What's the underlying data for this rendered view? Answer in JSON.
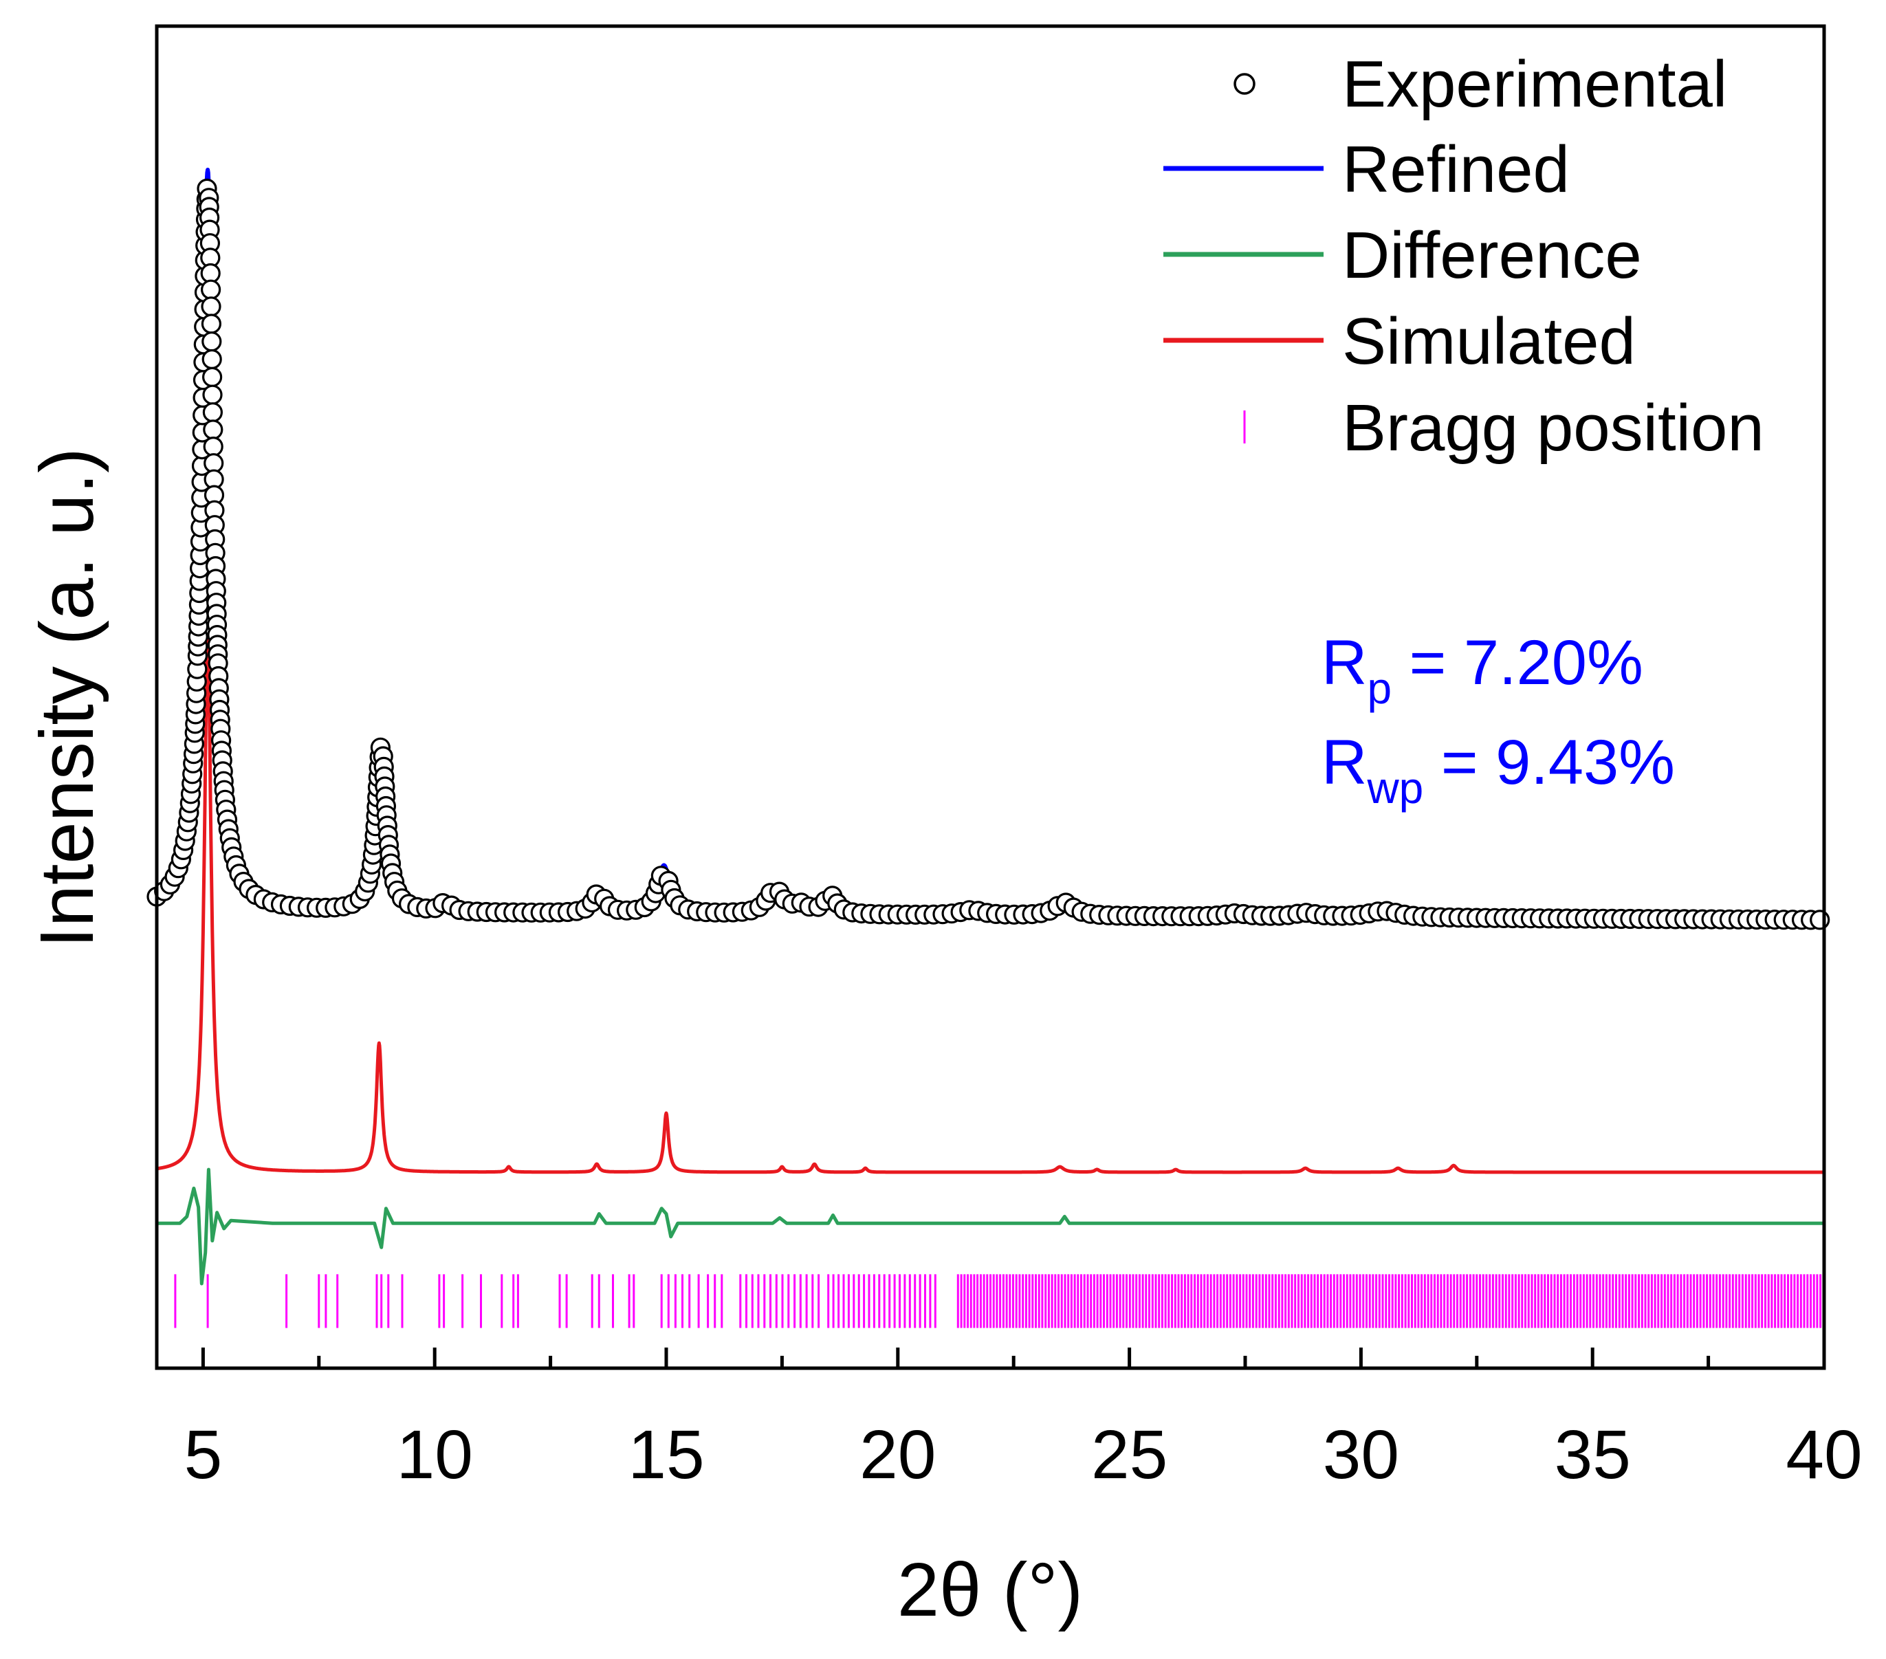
{
  "chart_data": {
    "type": "line",
    "title": "",
    "xlabel": "2θ (°)",
    "ylabel": "Intensity (a. u.)",
    "xlim": [
      4,
      40
    ],
    "ylim": [
      0,
      100
    ],
    "grid": false,
    "legend_position": "top-right",
    "x_ticks": [
      "5",
      "10",
      "15",
      "20",
      "25",
      "30",
      "35",
      "40"
    ],
    "annotations": {
      "rp_label": "R",
      "rp_sub": "p",
      "rp_value": " = 7.20%",
      "rwp_label": "R",
      "rwp_sub": "wp",
      "rwp_value": " = 9.43%",
      "color": "#0000ff"
    },
    "series": [
      {
        "name": "Experimental",
        "style": "open-circles",
        "color": "#000000",
        "baseline": 34,
        "end_baseline": 33.4,
        "peaks": [
          [
            5.1,
            54.5,
            0.16
          ],
          [
            8.85,
            12.5,
            0.13
          ],
          [
            10.25,
            0.8,
            0.12
          ],
          [
            13.55,
            1.6,
            0.15
          ],
          [
            14.95,
            3.2,
            0.17
          ],
          [
            17.35,
            1.9,
            0.2
          ],
          [
            17.9,
            0.6,
            0.2
          ],
          [
            18.55,
            1.4,
            0.16
          ],
          [
            21.6,
            0.4,
            0.3
          ],
          [
            23.6,
            1.0,
            0.25
          ],
          [
            27.3,
            0.25,
            0.3
          ],
          [
            28.8,
            0.3,
            0.3
          ],
          [
            30.5,
            0.5,
            0.4
          ]
        ]
      },
      {
        "name": "Refined",
        "style": "line",
        "color": "#0000ff",
        "baseline": 34,
        "end_baseline": 33.4,
        "peaks": [
          [
            5.1,
            55.3,
            0.16
          ],
          [
            8.85,
            12.5,
            0.13
          ],
          [
            10.25,
            0.8,
            0.12
          ],
          [
            13.55,
            1.6,
            0.15
          ],
          [
            14.95,
            3.6,
            0.17
          ],
          [
            17.35,
            1.9,
            0.2
          ],
          [
            17.9,
            0.6,
            0.2
          ],
          [
            18.55,
            1.4,
            0.16
          ],
          [
            21.6,
            0.4,
            0.3
          ],
          [
            23.6,
            1.0,
            0.25
          ],
          [
            27.3,
            0.25,
            0.3
          ],
          [
            28.8,
            0.3,
            0.3
          ],
          [
            30.5,
            0.5,
            0.4
          ]
        ]
      },
      {
        "name": "Difference",
        "style": "line",
        "color": "#2ca05a",
        "baseline": 10.8,
        "points": [
          [
            4.0,
            10.8
          ],
          [
            4.5,
            10.8
          ],
          [
            4.65,
            11.3
          ],
          [
            4.8,
            13.4
          ],
          [
            4.9,
            12.0
          ],
          [
            4.97,
            6.3
          ],
          [
            5.05,
            8.6
          ],
          [
            5.12,
            14.8
          ],
          [
            5.2,
            9.5
          ],
          [
            5.3,
            11.6
          ],
          [
            5.45,
            10.4
          ],
          [
            5.6,
            11.0
          ],
          [
            6.5,
            10.8
          ],
          [
            8.7,
            10.8
          ],
          [
            8.85,
            9.0
          ],
          [
            8.95,
            11.9
          ],
          [
            9.1,
            10.8
          ],
          [
            13.45,
            10.8
          ],
          [
            13.55,
            11.5
          ],
          [
            13.7,
            10.8
          ],
          [
            14.75,
            10.8
          ],
          [
            14.9,
            11.9
          ],
          [
            15.0,
            11.5
          ],
          [
            15.1,
            9.8
          ],
          [
            15.25,
            10.8
          ],
          [
            17.3,
            10.8
          ],
          [
            17.45,
            11.2
          ],
          [
            17.6,
            10.8
          ],
          [
            18.5,
            10.8
          ],
          [
            18.6,
            11.4
          ],
          [
            18.7,
            10.8
          ],
          [
            23.5,
            10.8
          ],
          [
            23.6,
            11.3
          ],
          [
            23.7,
            10.8
          ],
          [
            40.0,
            10.8
          ]
        ]
      },
      {
        "name": "Simulated",
        "style": "line",
        "color": "#e8191f",
        "baseline": 14.6,
        "peaks": [
          [
            5.1,
            40.0,
            0.09
          ],
          [
            8.8,
            9.6,
            0.07
          ],
          [
            11.6,
            0.4,
            0.05
          ],
          [
            13.5,
            0.6,
            0.06
          ],
          [
            15.0,
            4.4,
            0.06
          ],
          [
            17.5,
            0.4,
            0.05
          ],
          [
            18.2,
            0.6,
            0.06
          ],
          [
            19.3,
            0.3,
            0.05
          ],
          [
            23.5,
            0.4,
            0.1
          ],
          [
            24.3,
            0.2,
            0.06
          ],
          [
            26.0,
            0.2,
            0.06
          ],
          [
            28.8,
            0.3,
            0.08
          ],
          [
            30.8,
            0.3,
            0.08
          ],
          [
            32.0,
            0.5,
            0.08
          ]
        ]
      },
      {
        "name": "Bragg position",
        "style": "ticks",
        "color": "#ff00ff",
        "y_bottom": 3.0,
        "y_top": 7.0,
        "positions": [
          4.4,
          5.1,
          6.8,
          7.5,
          7.65,
          7.9,
          8.75,
          8.85,
          9.0,
          9.3,
          10.1,
          10.2,
          10.6,
          11.0,
          11.45,
          11.7,
          11.8,
          12.7,
          12.85,
          13.4,
          13.55,
          13.85,
          14.2,
          14.3,
          14.9,
          15.05,
          15.2,
          15.35,
          15.5,
          15.7,
          15.9,
          16.05,
          16.2
        ],
        "dense_ranges": [
          [
            16.6,
            18.4,
            0.13
          ],
          [
            18.5,
            20.9,
            0.11
          ],
          [
            21.3,
            40.0,
            0.07
          ]
        ]
      }
    ]
  },
  "legend": {
    "items": [
      {
        "label": "Experimental",
        "marker": "circle",
        "color": "#000000"
      },
      {
        "label": "Refined",
        "marker": "line",
        "color": "#0000ff"
      },
      {
        "label": "Difference",
        "marker": "line",
        "color": "#2ca05a"
      },
      {
        "label": "Simulated",
        "marker": "line",
        "color": "#e8191f"
      },
      {
        "label": "Bragg position",
        "marker": "tick",
        "color": "#ff00ff"
      }
    ]
  }
}
